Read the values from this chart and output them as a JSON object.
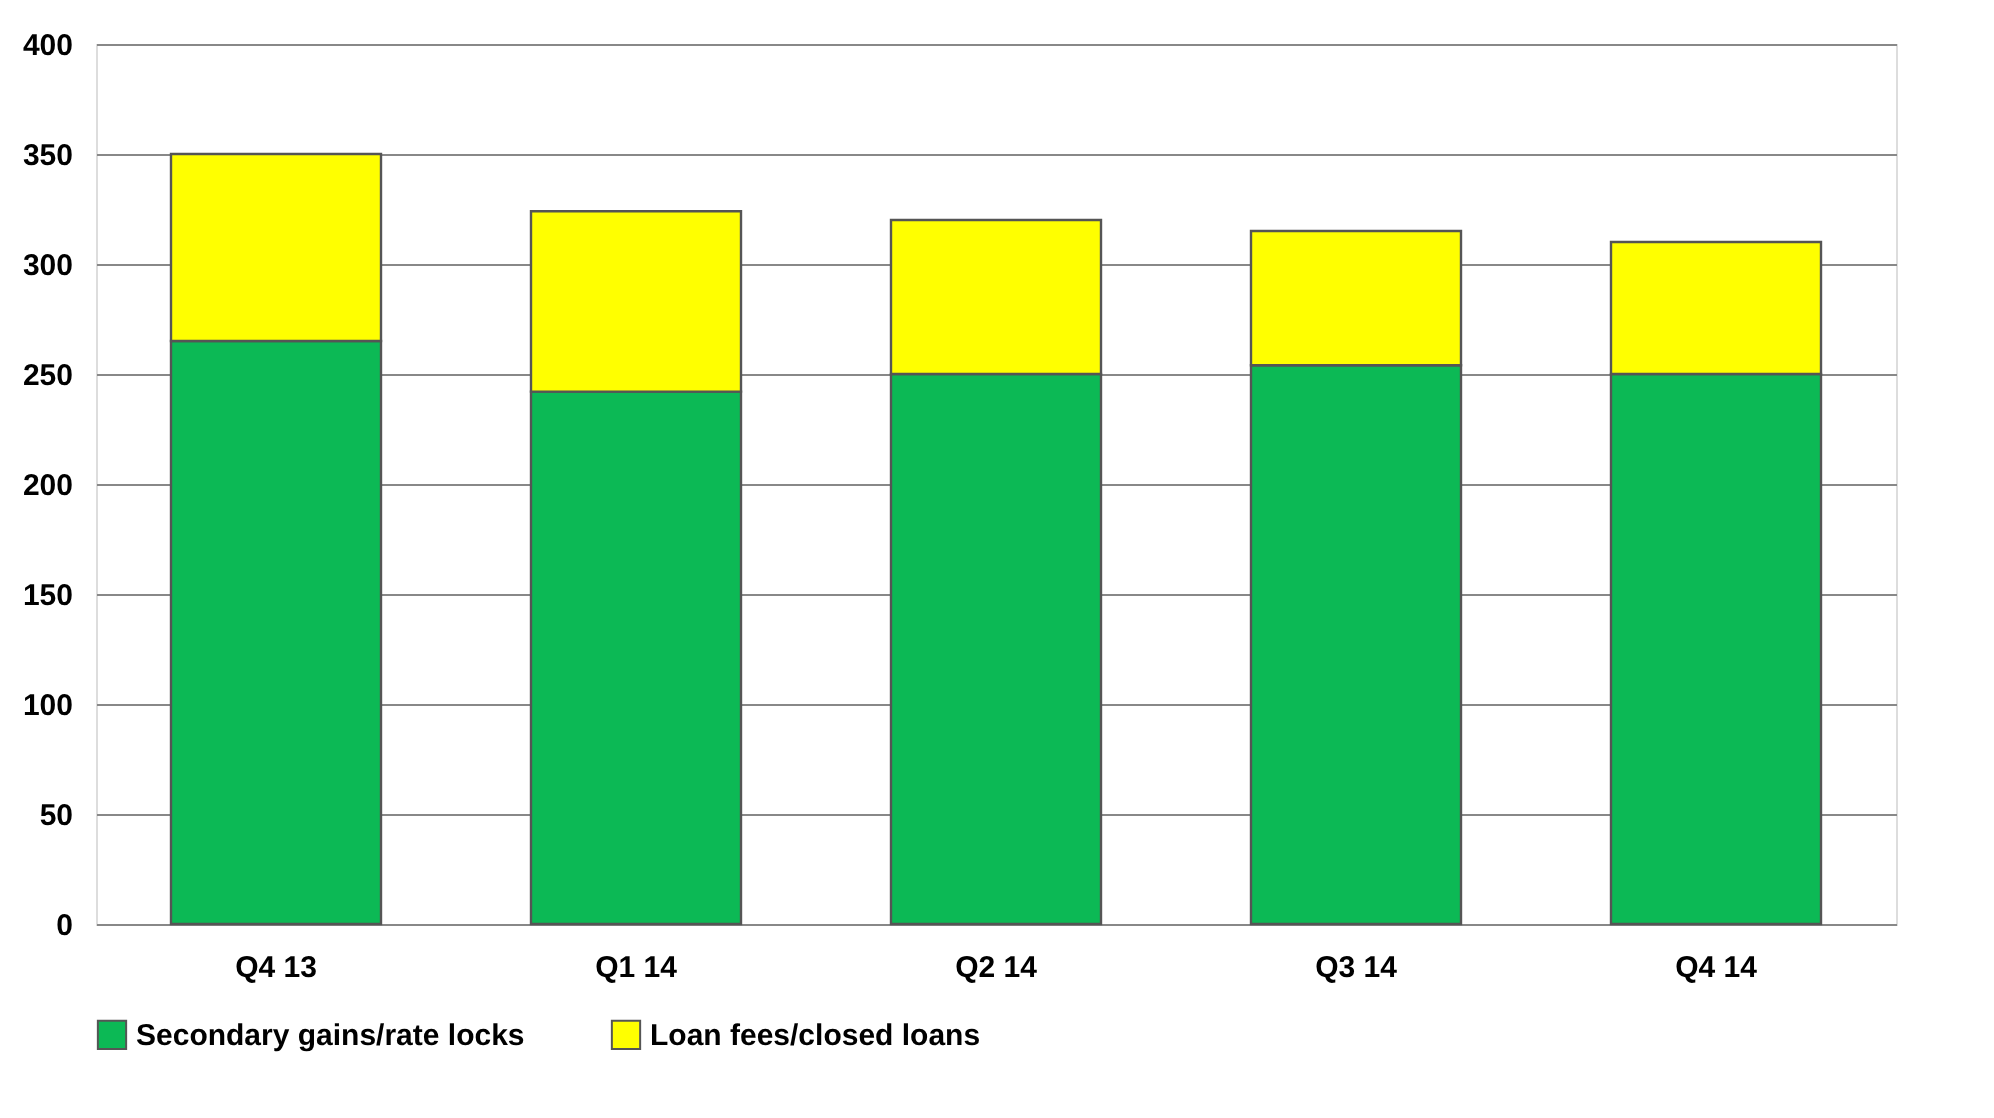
{
  "chart_data": {
    "type": "bar",
    "stacked": true,
    "categories": [
      "Q4 13",
      "Q1 14",
      "Q2 14",
      "Q3 14",
      "Q4 14"
    ],
    "series": [
      {
        "name": "Secondary gains/rate locks",
        "color": "#0cb955",
        "values": [
          265,
          242,
          250,
          254,
          250
        ]
      },
      {
        "name": "Loan fees/closed loans",
        "color": "#ffff00",
        "values": [
          85,
          82,
          70,
          61,
          60
        ]
      }
    ],
    "ylim": [
      0,
      400
    ],
    "yticks": [
      0,
      50,
      100,
      150,
      200,
      250,
      300,
      350,
      400
    ],
    "grid": "y",
    "legend": "bottom"
  }
}
